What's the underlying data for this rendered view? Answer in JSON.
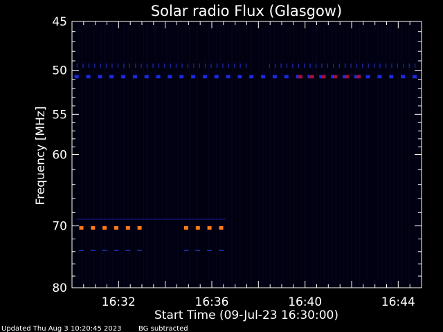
{
  "chart_data": {
    "type": "heatmap",
    "title": "Solar radio Flux (Glasgow)",
    "ylabel": "Frequency [MHz]",
    "xlabel": "Start Time (09-Jul-23 16:30:00)",
    "x_tick_labels": [
      "16:32",
      "16:36",
      "16:40",
      "16:44"
    ],
    "x_tick_values_min": [
      2,
      6,
      10,
      14
    ],
    "y_tick_labels": [
      "45",
      "50",
      "55",
      "60",
      "70",
      "80"
    ],
    "y_tick_values": [
      45,
      50,
      55,
      60,
      70,
      80
    ],
    "ylim": [
      45,
      80
    ],
    "x_range_min": [
      0,
      15
    ],
    "y_scale": "log",
    "y_inverted": true,
    "background_color": "#000010",
    "features": [
      {
        "freq": 50.7,
        "start_min": 0.2,
        "end_min": 14.8,
        "color": "#1a2adc",
        "intensity": "medium"
      },
      {
        "freq": 50.7,
        "start_min": 9.8,
        "end_min": 12.5,
        "color": "#a0103a",
        "intensity": "high"
      },
      {
        "freq": 70.3,
        "start_min": 0.4,
        "end_min": 3.2,
        "color": "#ff7a1a",
        "intensity": "very high"
      },
      {
        "freq": 70.3,
        "start_min": 4.9,
        "end_min": 6.6,
        "color": "#ff7a1a",
        "intensity": "very high"
      },
      {
        "freq": 73.8,
        "start_min": 0.4,
        "end_min": 3.2,
        "color": "#1a2a90",
        "intensity": "low"
      },
      {
        "freq": 73.8,
        "start_min": 4.9,
        "end_min": 6.6,
        "color": "#1a2a90",
        "intensity": "low"
      }
    ]
  },
  "footer": {
    "updated": "Updated Thu Aug  3 10:20:45 2023",
    "bg_note": "BG subtracted"
  }
}
